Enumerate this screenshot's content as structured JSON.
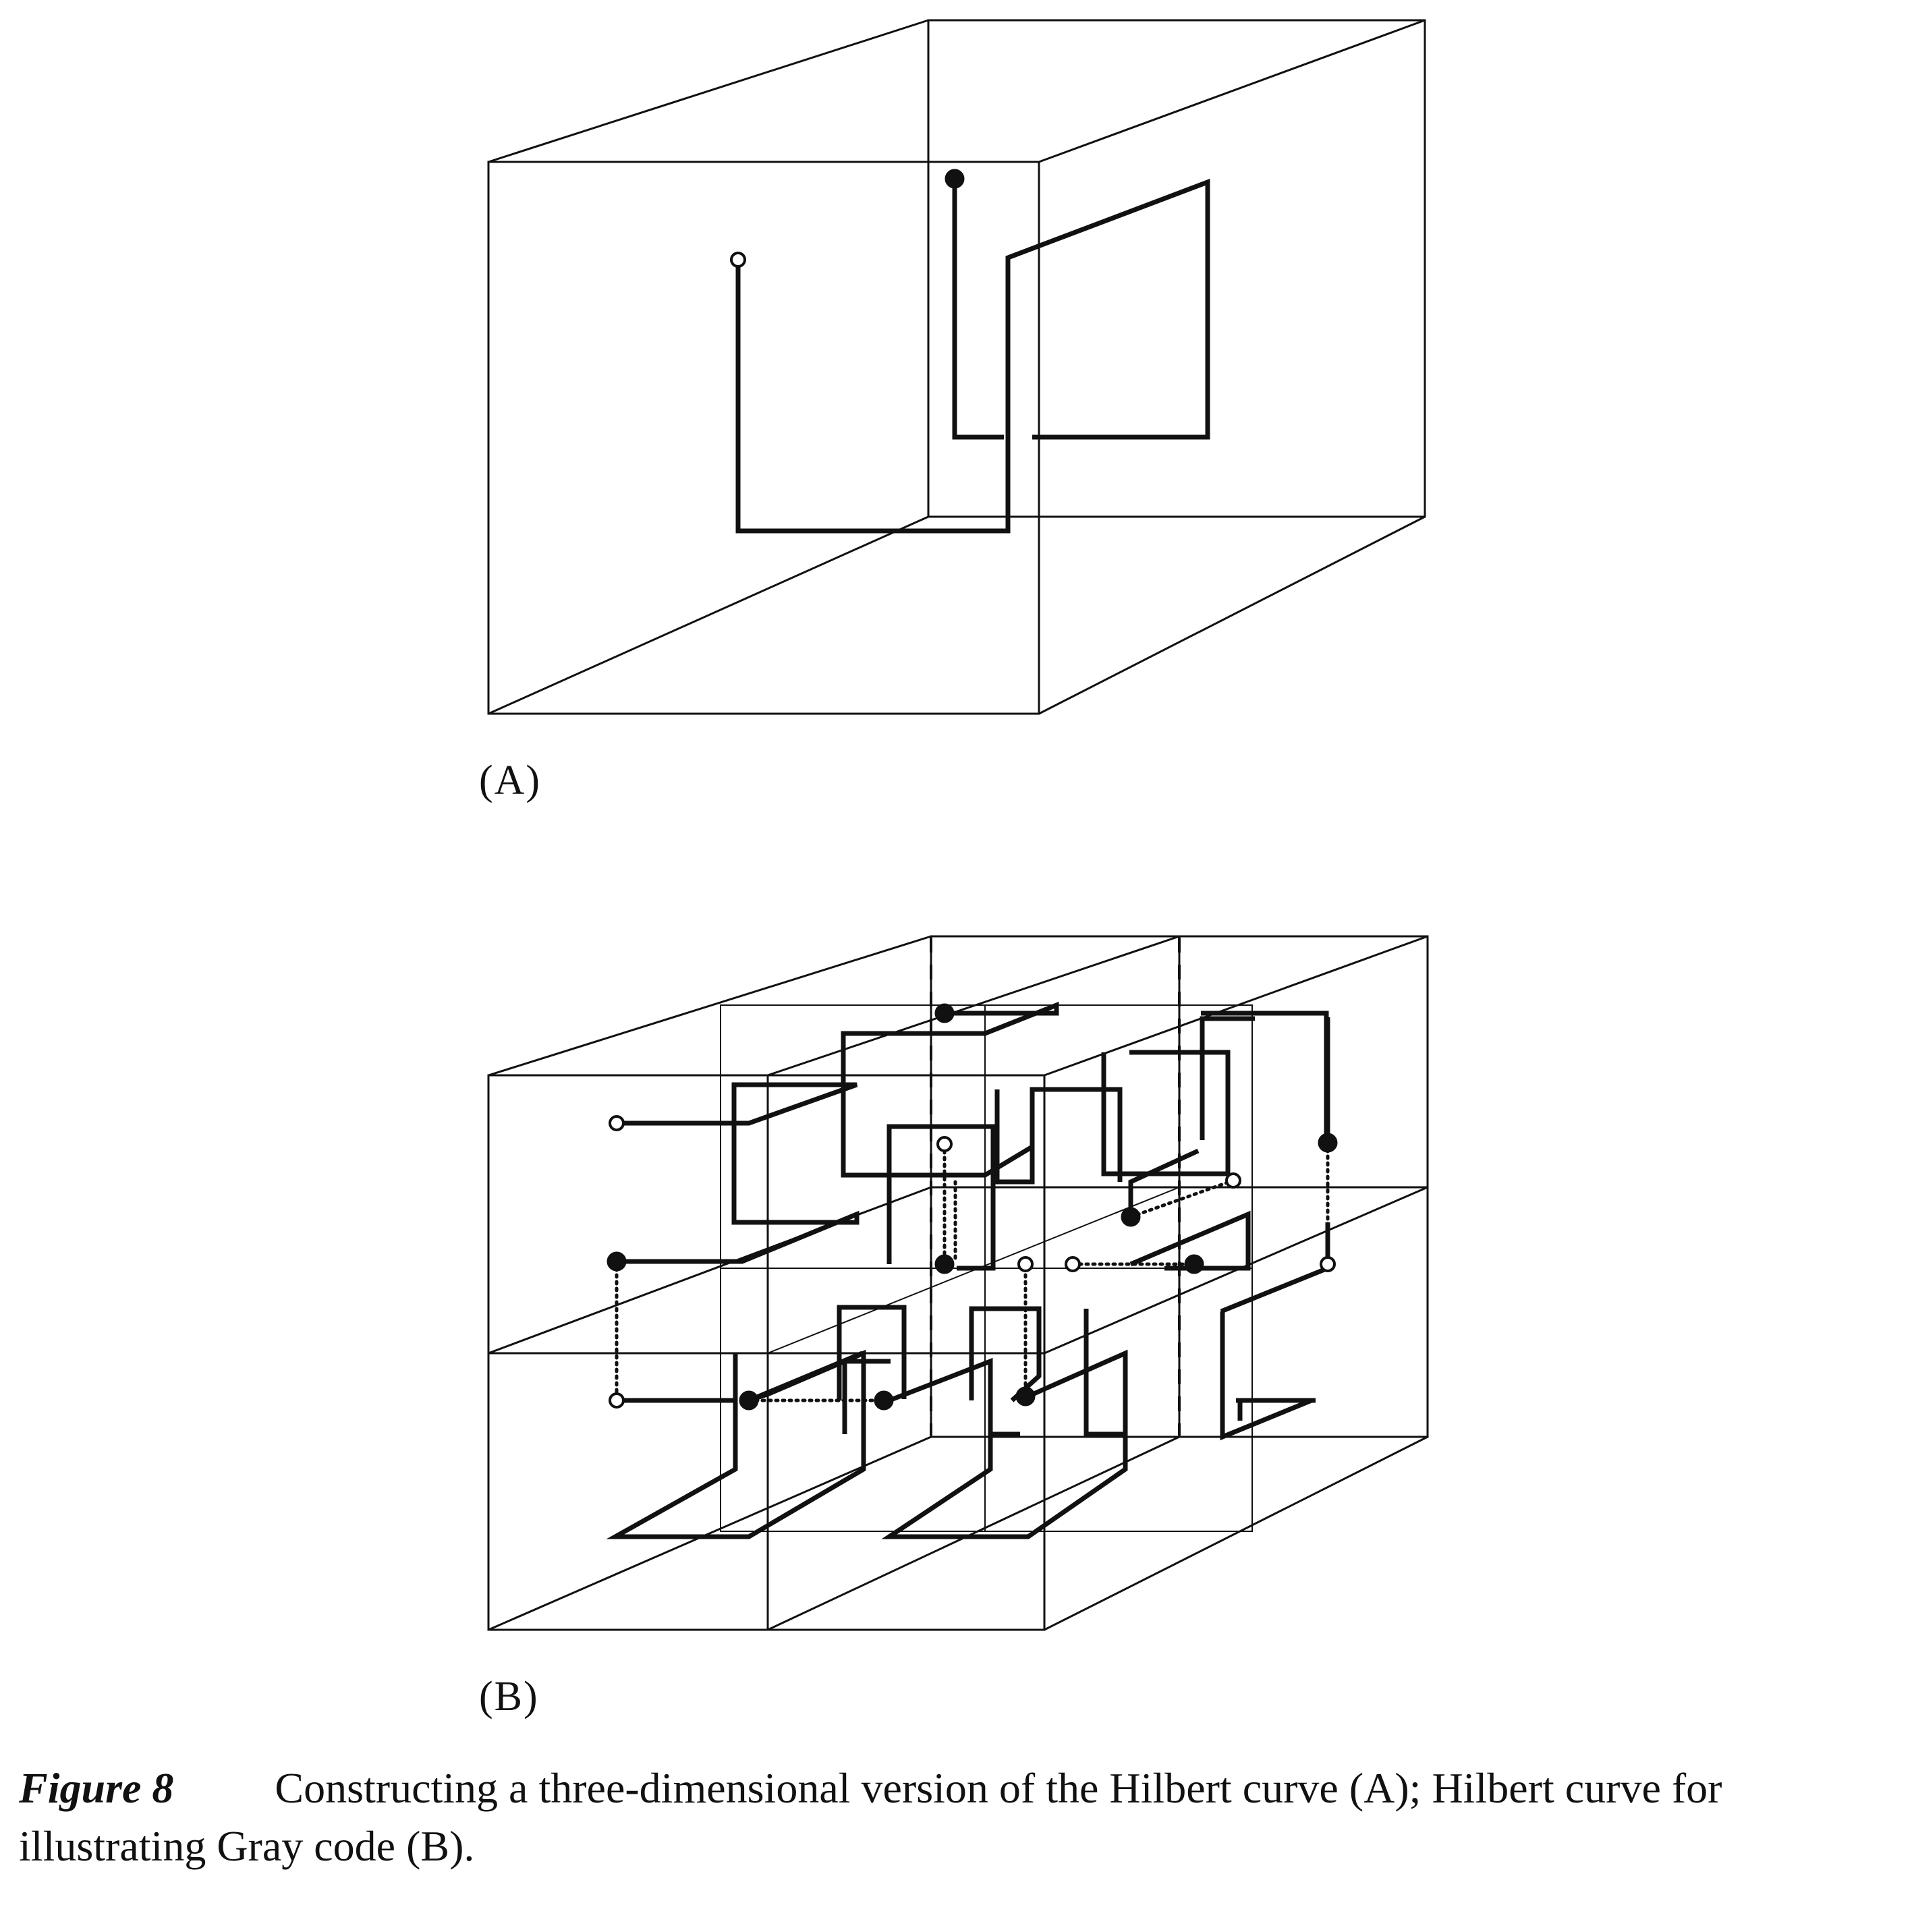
{
  "panels": [
    {
      "id": "A",
      "label": "(A)"
    },
    {
      "id": "B",
      "label": "(B)"
    }
  ],
  "caption": {
    "figure_number": "Figure 8",
    "text": "Constructing a three-dimensional version of the Hilbert curve (A); Hilbert curve for illustrating Gray code (B)."
  },
  "colors": {
    "ink": "#111111",
    "paper": "#ffffff"
  }
}
